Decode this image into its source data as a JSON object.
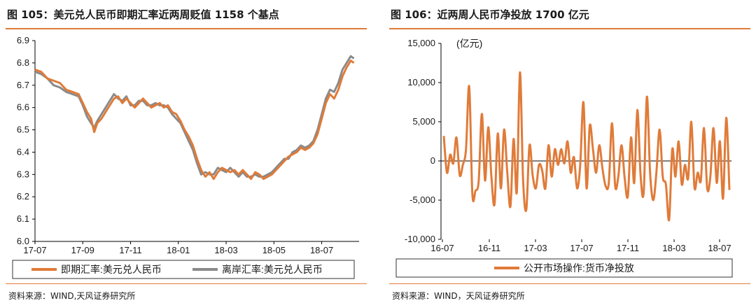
{
  "left_panel": {
    "title": "图 105：美元兑人民币即期汇率近两周贬值 1158 个基点",
    "source": "资料来源：WIND,天风证券研究所",
    "legend": [
      "即期汇率:美元兑人民币",
      "离岸汇率:美元兑人民币"
    ]
  },
  "right_panel": {
    "title": "图 106：近两周人民币净投放 1700 亿元",
    "source": "资料来源：WIND，天风证券研究所",
    "unit_label": "(亿元)",
    "legend": [
      "公开市场操作:货币净投放"
    ]
  },
  "colors": {
    "orange": "#e07b39",
    "gray": "#8a8a8a",
    "axis": "#000000"
  },
  "chart_data": [
    {
      "type": "line",
      "title": "图 105：美元兑人民币即期汇率近两周贬值 1158 个基点",
      "xlabel": "",
      "ylabel": "",
      "ylim": [
        6.0,
        6.9
      ],
      "yticks": [
        "6.0",
        "6.1",
        "6.2",
        "6.3",
        "6.4",
        "6.5",
        "6.6",
        "6.7",
        "6.8",
        "6.9"
      ],
      "xticks": [
        "17-07",
        "17-09",
        "17-11",
        "18-01",
        "18-03",
        "18-05",
        "18-07"
      ],
      "x_unit": "months since 17-07",
      "series": [
        {
          "name": "即期汇率:美元兑人民币",
          "color": "#e07b39",
          "points": [
            [
              0,
              6.77
            ],
            [
              0.3,
              6.76
            ],
            [
              0.6,
              6.73
            ],
            [
              0.9,
              6.72
            ],
            [
              1.2,
              6.71
            ],
            [
              1.5,
              6.68
            ],
            [
              1.8,
              6.67
            ],
            [
              2.1,
              6.66
            ],
            [
              2.3,
              6.62
            ],
            [
              2.5,
              6.58
            ],
            [
              2.7,
              6.55
            ],
            [
              2.85,
              6.49
            ],
            [
              3.0,
              6.53
            ],
            [
              3.2,
              6.55
            ],
            [
              3.4,
              6.58
            ],
            [
              3.6,
              6.61
            ],
            [
              3.8,
              6.64
            ],
            [
              4.0,
              6.65
            ],
            [
              4.2,
              6.62
            ],
            [
              4.4,
              6.64
            ],
            [
              4.6,
              6.62
            ],
            [
              4.8,
              6.6
            ],
            [
              5.0,
              6.62
            ],
            [
              5.2,
              6.64
            ],
            [
              5.4,
              6.62
            ],
            [
              5.6,
              6.6
            ],
            [
              5.8,
              6.61
            ],
            [
              6.0,
              6.62
            ],
            [
              6.2,
              6.6
            ],
            [
              6.4,
              6.61
            ],
            [
              6.6,
              6.58
            ],
            [
              6.8,
              6.57
            ],
            [
              7.0,
              6.54
            ],
            [
              7.2,
              6.5
            ],
            [
              7.4,
              6.47
            ],
            [
              7.6,
              6.43
            ],
            [
              7.8,
              6.37
            ],
            [
              8.0,
              6.32
            ],
            [
              8.2,
              6.29
            ],
            [
              8.4,
              6.31
            ],
            [
              8.6,
              6.28
            ],
            [
              8.8,
              6.31
            ],
            [
              9.0,
              6.33
            ],
            [
              9.2,
              6.32
            ],
            [
              9.4,
              6.31
            ],
            [
              9.6,
              6.32
            ],
            [
              9.8,
              6.3
            ],
            [
              10.0,
              6.32
            ],
            [
              10.2,
              6.3
            ],
            [
              10.4,
              6.28
            ],
            [
              10.6,
              6.31
            ],
            [
              10.8,
              6.3
            ],
            [
              11.0,
              6.28
            ],
            [
              11.2,
              6.29
            ],
            [
              11.4,
              6.3
            ],
            [
              11.6,
              6.32
            ],
            [
              11.8,
              6.34
            ],
            [
              12.0,
              6.36
            ],
            [
              12.2,
              6.38
            ],
            [
              12.4,
              6.39
            ],
            [
              12.6,
              6.4
            ],
            [
              12.8,
              6.42
            ],
            [
              13.0,
              6.41
            ],
            [
              13.2,
              6.42
            ],
            [
              13.4,
              6.44
            ],
            [
              13.6,
              6.48
            ],
            [
              13.8,
              6.55
            ],
            [
              14.0,
              6.62
            ],
            [
              14.2,
              6.66
            ],
            [
              14.4,
              6.64
            ],
            [
              14.6,
              6.68
            ],
            [
              14.8,
              6.74
            ],
            [
              15.0,
              6.78
            ],
            [
              15.2,
              6.81
            ],
            [
              15.35,
              6.8
            ]
          ]
        },
        {
          "name": "离岸汇率:美元兑人民币",
          "color": "#8a8a8a",
          "points": [
            [
              0,
              6.76
            ],
            [
              0.3,
              6.75
            ],
            [
              0.6,
              6.73
            ],
            [
              0.9,
              6.7
            ],
            [
              1.2,
              6.69
            ],
            [
              1.5,
              6.67
            ],
            [
              1.8,
              6.66
            ],
            [
              2.1,
              6.65
            ],
            [
              2.3,
              6.61
            ],
            [
              2.5,
              6.56
            ],
            [
              2.7,
              6.53
            ],
            [
              2.85,
              6.51
            ],
            [
              3.0,
              6.54
            ],
            [
              3.2,
              6.57
            ],
            [
              3.4,
              6.6
            ],
            [
              3.6,
              6.63
            ],
            [
              3.8,
              6.66
            ],
            [
              4.0,
              6.64
            ],
            [
              4.2,
              6.63
            ],
            [
              4.4,
              6.65
            ],
            [
              4.6,
              6.61
            ],
            [
              4.8,
              6.61
            ],
            [
              5.0,
              6.63
            ],
            [
              5.2,
              6.63
            ],
            [
              5.4,
              6.61
            ],
            [
              5.6,
              6.61
            ],
            [
              5.8,
              6.62
            ],
            [
              6.0,
              6.61
            ],
            [
              6.2,
              6.61
            ],
            [
              6.4,
              6.6
            ],
            [
              6.6,
              6.57
            ],
            [
              6.8,
              6.55
            ],
            [
              7.0,
              6.53
            ],
            [
              7.2,
              6.49
            ],
            [
              7.4,
              6.45
            ],
            [
              7.6,
              6.41
            ],
            [
              7.8,
              6.35
            ],
            [
              8.0,
              6.3
            ],
            [
              8.2,
              6.31
            ],
            [
              8.4,
              6.3
            ],
            [
              8.6,
              6.3
            ],
            [
              8.8,
              6.33
            ],
            [
              9.0,
              6.32
            ],
            [
              9.2,
              6.31
            ],
            [
              9.4,
              6.33
            ],
            [
              9.6,
              6.31
            ],
            [
              9.8,
              6.29
            ],
            [
              10.0,
              6.31
            ],
            [
              10.2,
              6.29
            ],
            [
              10.4,
              6.29
            ],
            [
              10.6,
              6.3
            ],
            [
              10.8,
              6.29
            ],
            [
              11.0,
              6.29
            ],
            [
              11.2,
              6.3
            ],
            [
              11.4,
              6.31
            ],
            [
              11.6,
              6.33
            ],
            [
              11.8,
              6.35
            ],
            [
              12.0,
              6.37
            ],
            [
              12.2,
              6.37
            ],
            [
              12.4,
              6.4
            ],
            [
              12.6,
              6.41
            ],
            [
              12.8,
              6.43
            ],
            [
              13.0,
              6.42
            ],
            [
              13.2,
              6.43
            ],
            [
              13.4,
              6.45
            ],
            [
              13.6,
              6.5
            ],
            [
              13.8,
              6.57
            ],
            [
              14.0,
              6.64
            ],
            [
              14.2,
              6.68
            ],
            [
              14.4,
              6.67
            ],
            [
              14.6,
              6.71
            ],
            [
              14.8,
              6.77
            ],
            [
              15.0,
              6.8
            ],
            [
              15.2,
              6.83
            ],
            [
              15.35,
              6.82
            ]
          ]
        }
      ],
      "legend": "bottom"
    },
    {
      "type": "line",
      "title": "图 106：近两周人民币净投放 1700 亿元",
      "xlabel": "",
      "ylabel": "(亿元)",
      "ylim": [
        -10000,
        15000
      ],
      "yticks": [
        "-10,000",
        "-5,000",
        "0",
        "5,000",
        "10,000",
        "15,000"
      ],
      "xticks": [
        "16-07",
        "16-11",
        "17-03",
        "17-07",
        "17-11",
        "18-03",
        "18-07"
      ],
      "x_unit": "months since 16-07",
      "series": [
        {
          "name": "公开市场操作:货币净投放",
          "color": "#e07b39",
          "values": [
            3200,
            -1500,
            800,
            -300,
            3000,
            -1800,
            -500,
            1500,
            9500,
            -4200,
            -3800,
            -2500,
            6000,
            -2500,
            4300,
            -2000,
            -5500,
            3500,
            -3500,
            4000,
            -1500,
            -5800,
            2800,
            -4000,
            11300,
            -2500,
            -6200,
            2000,
            -1800,
            -3500,
            -500,
            -1200,
            -3500,
            2000,
            -2000,
            1500,
            -500,
            1500,
            -300,
            2500,
            -1500,
            500,
            -3500,
            -500,
            7500,
            -3500,
            4500,
            1500,
            -1500,
            2000,
            -1000,
            -3200,
            -2800,
            4800,
            -3200,
            -2000,
            2000,
            -2200,
            -4500,
            3000,
            -2800,
            6500,
            -1800,
            -4000,
            8200,
            -1500,
            -5000,
            -1500,
            4000,
            -2000,
            -3000,
            -7500,
            1500,
            -2000,
            2500,
            -3000,
            -500,
            -2200,
            5000,
            -3400,
            -1500,
            -2500,
            4200,
            -3500,
            -2000,
            4200,
            -2800,
            2500,
            -4800,
            5500,
            -3700
          ]
        }
      ],
      "legend": "bottom"
    }
  ]
}
